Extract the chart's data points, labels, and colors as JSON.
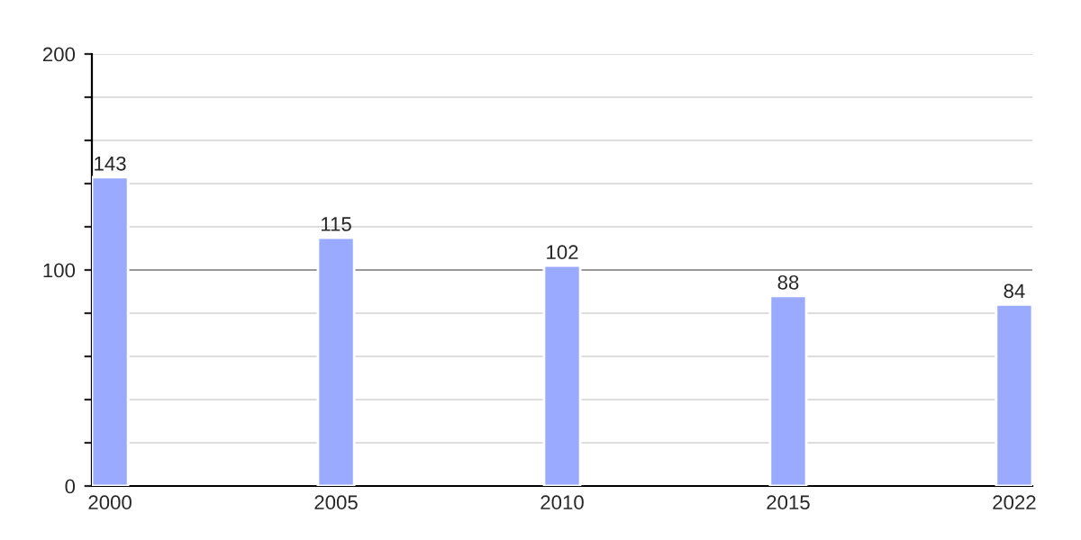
{
  "chart_data": {
    "type": "bar",
    "categories": [
      "2000",
      "2005",
      "2010",
      "2015",
      "2022"
    ],
    "values": [
      143,
      115,
      102,
      88,
      84
    ],
    "color": "#99aaff",
    "ylim": [
      0,
      200
    ],
    "yticks": [
      0,
      {
        "value": 20,
        "label": null
      },
      {
        "value": 40,
        "label": null
      },
      {
        "value": 60,
        "label": null
      },
      {
        "value": 80,
        "label": null
      },
      100,
      {
        "value": 120,
        "label": null
      },
      {
        "value": 140,
        "label": null
      },
      {
        "value": 160,
        "label": null
      },
      {
        "value": 180,
        "label": null
      },
      200
    ],
    "grid": "y",
    "ref_lines": [
      {
        "axis": "y",
        "value": 100,
        "color": "#999999"
      }
    ],
    "data_labels": true
  }
}
